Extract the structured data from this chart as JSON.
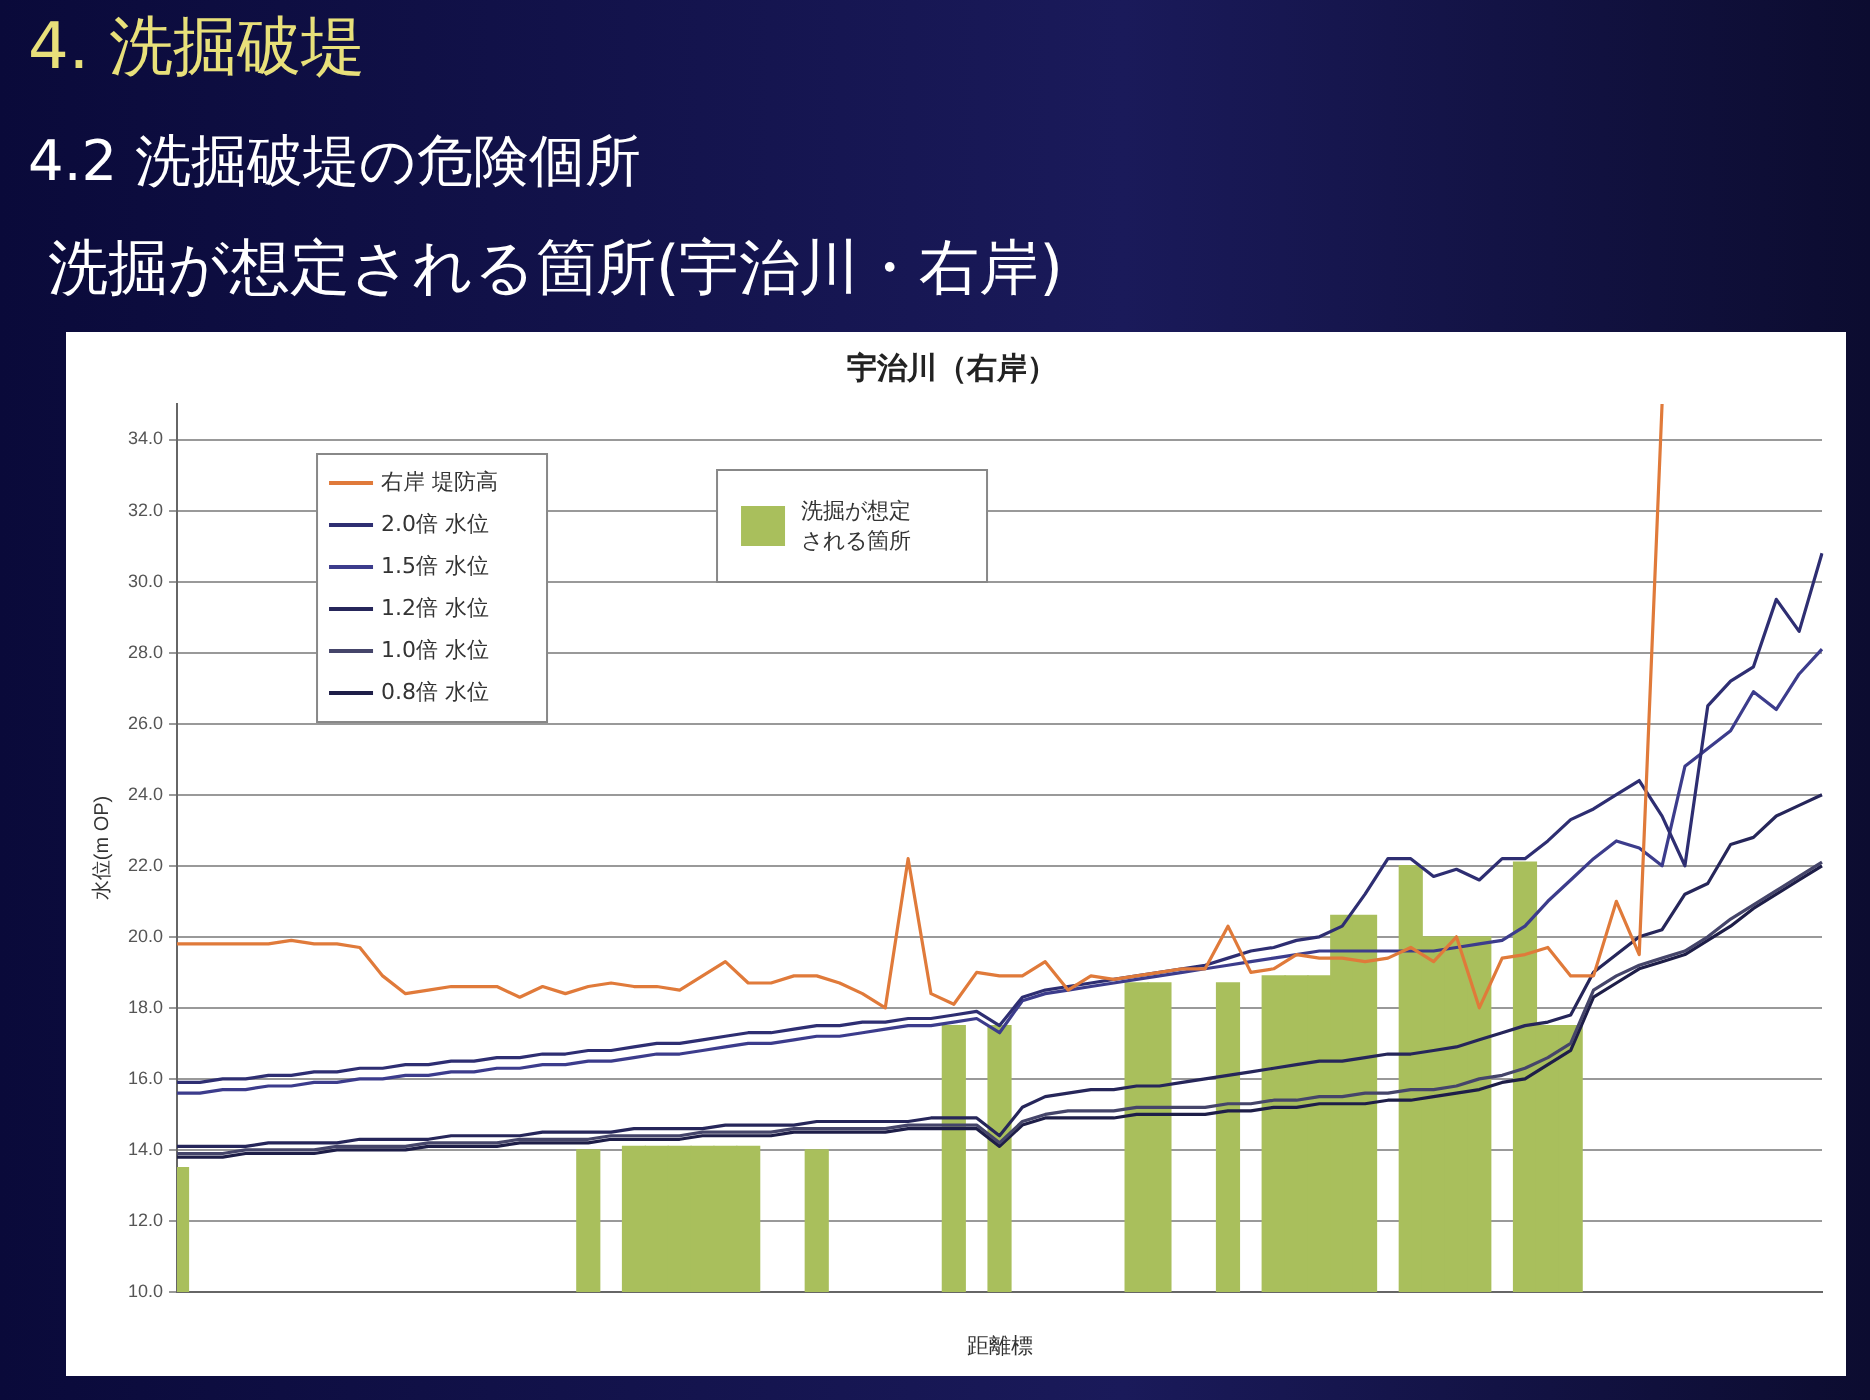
{
  "chart_data": {
    "type": "line",
    "title": "宇治川（右岸）",
    "xlabel": "距離標",
    "ylabel": "水位(m OP)",
    "annotations": [
      "4. 洗掘破堤",
      "4.2 洗掘破堤の危険個所",
      "洗掘が想定される箇所(宇治川・右岸)"
    ],
    "categories": [
      null,
      null,
      null,
      null,
      null,
      null,
      null,
      null,
      null,
      null,
      null,
      null,
      null,
      null,
      null,
      null,
      null,
      null,
      null,
      null,
      null,
      null,
      null,
      null,
      null,
      null,
      null,
      null,
      null,
      null,
      null,
      null,
      null,
      null,
      null,
      null,
      null,
      null,
      null,
      null,
      null,
      null,
      null,
      null,
      null,
      null,
      null,
      null,
      null,
      null,
      null,
      null,
      null,
      null,
      null,
      null,
      null,
      null,
      null,
      null,
      null,
      null,
      null,
      null,
      null,
      null,
      null,
      null,
      null,
      null,
      null,
      null,
      null
    ],
    "ylim": [
      10,
      35
    ],
    "yticks": [
      {
        "value": 10,
        "label": "10.0"
      },
      {
        "value": 12,
        "label": "12.0"
      },
      {
        "value": 14,
        "label": "14.0"
      },
      {
        "value": 16,
        "label": "16.0"
      },
      {
        "value": 18,
        "label": "18.0"
      },
      {
        "value": 20,
        "label": "20.0"
      },
      {
        "value": 22,
        "label": "22.0"
      },
      {
        "value": 24,
        "label": "24.0"
      },
      {
        "value": 26,
        "label": "26.0"
      },
      {
        "value": 28,
        "label": "28.0"
      },
      {
        "value": 30,
        "label": "30.0"
      },
      {
        "value": 32,
        "label": "32.0"
      },
      {
        "value": 34,
        "label": "34.0"
      }
    ],
    "grid": "y",
    "legend": "top left",
    "marker": "none",
    "line_style": "solid",
    "series": [
      {
        "type": "bar",
        "name": "洗掘が想定される箇所",
        "color": "#a9bf5c",
        "values": [
          13.5,
          null,
          null,
          null,
          null,
          null,
          null,
          null,
          null,
          null,
          null,
          null,
          null,
          null,
          null,
          null,
          null,
          null,
          14.0,
          null,
          14.1,
          14.1,
          14.1,
          14.1,
          14.1,
          14.1,
          null,
          null,
          14.0,
          null,
          null,
          null,
          null,
          null,
          17.5,
          null,
          17.5,
          null,
          null,
          null,
          null,
          null,
          18.7,
          18.7,
          null,
          null,
          18.7,
          null,
          18.9,
          18.9,
          18.9,
          20.6,
          20.6,
          null,
          22.0,
          20.0,
          20.0,
          20.0,
          null,
          22.1,
          17.5,
          17.5,
          null,
          null,
          null,
          null,
          null,
          null,
          null,
          null,
          null,
          null,
          null
        ]
      },
      {
        "name": "右岸 堤防高",
        "color": "#e07a3a",
        "values": [
          19.8,
          19.8,
          19.8,
          19.8,
          19.8,
          19.9,
          19.8,
          19.8,
          19.7,
          18.9,
          18.4,
          18.5,
          18.6,
          18.6,
          18.6,
          18.3,
          18.6,
          18.4,
          18.6,
          18.7,
          18.6,
          18.6,
          18.5,
          18.9,
          19.3,
          18.7,
          18.7,
          18.9,
          18.9,
          18.7,
          18.4,
          18.0,
          22.2,
          18.4,
          18.1,
          19.0,
          18.9,
          18.9,
          19.3,
          18.5,
          18.9,
          18.8,
          18.9,
          19.0,
          19.1,
          19.1,
          20.3,
          19.0,
          19.1,
          19.5,
          19.4,
          19.4,
          19.3,
          19.4,
          19.7,
          19.3,
          20.0,
          18.0,
          19.4,
          19.5,
          19.7,
          18.9,
          18.9,
          21.0,
          19.5,
          35,
          null,
          null,
          null,
          null,
          null,
          null,
          null
        ]
      },
      {
        "name": "2.0倍 水位",
        "color": "#2e2e72",
        "values": [
          15.9,
          15.9,
          16.0,
          16.0,
          16.1,
          16.1,
          16.2,
          16.2,
          16.3,
          16.3,
          16.4,
          16.4,
          16.5,
          16.5,
          16.6,
          16.6,
          16.7,
          16.7,
          16.8,
          16.8,
          16.9,
          17.0,
          17.0,
          17.1,
          17.2,
          17.3,
          17.3,
          17.4,
          17.5,
          17.5,
          17.6,
          17.6,
          17.7,
          17.7,
          17.8,
          17.9,
          17.5,
          18.3,
          18.5,
          18.6,
          18.7,
          18.8,
          18.9,
          19.0,
          19.1,
          19.2,
          19.4,
          19.6,
          19.7,
          19.9,
          20.0,
          20.3,
          21.2,
          22.2,
          22.2,
          21.7,
          21.9,
          21.6,
          22.2,
          22.2,
          22.7,
          23.3,
          23.6,
          24.0,
          24.4,
          23.4,
          22.0,
          26.5,
          27.2,
          27.6,
          29.5,
          28.6,
          30.8
        ]
      },
      {
        "name": "1.5倍 水位",
        "color": "#3c3c8c",
        "values": [
          15.6,
          15.6,
          15.7,
          15.7,
          15.8,
          15.8,
          15.9,
          15.9,
          16.0,
          16.0,
          16.1,
          16.1,
          16.2,
          16.2,
          16.3,
          16.3,
          16.4,
          16.4,
          16.5,
          16.5,
          16.6,
          16.7,
          16.7,
          16.8,
          16.9,
          17.0,
          17.0,
          17.1,
          17.2,
          17.2,
          17.3,
          17.4,
          17.5,
          17.5,
          17.6,
          17.7,
          17.3,
          18.2,
          18.4,
          18.5,
          18.6,
          18.7,
          18.8,
          18.9,
          19.0,
          19.1,
          19.2,
          19.3,
          19.4,
          19.5,
          19.6,
          19.6,
          19.6,
          19.6,
          19.6,
          19.6,
          19.7,
          19.8,
          19.9,
          20.3,
          21.0,
          21.6,
          22.2,
          22.7,
          22.5,
          22.0,
          24.8,
          25.3,
          25.8,
          26.9,
          26.4,
          27.4,
          28.1
        ]
      },
      {
        "name": "1.2倍 水位",
        "color": "#26265a",
        "values": [
          14.1,
          14.1,
          14.1,
          14.1,
          14.2,
          14.2,
          14.2,
          14.2,
          14.3,
          14.3,
          14.3,
          14.3,
          14.4,
          14.4,
          14.4,
          14.4,
          14.5,
          14.5,
          14.5,
          14.5,
          14.6,
          14.6,
          14.6,
          14.6,
          14.7,
          14.7,
          14.7,
          14.7,
          14.8,
          14.8,
          14.8,
          14.8,
          14.8,
          14.9,
          14.9,
          14.9,
          14.4,
          15.2,
          15.5,
          15.6,
          15.7,
          15.7,
          15.8,
          15.8,
          15.9,
          16.0,
          16.1,
          16.2,
          16.3,
          16.4,
          16.5,
          16.5,
          16.6,
          16.7,
          16.7,
          16.8,
          16.9,
          17.1,
          17.3,
          17.5,
          17.6,
          17.8,
          19.0,
          19.5,
          20.0,
          20.2,
          21.2,
          21.5,
          22.6,
          22.8,
          23.4,
          23.7,
          24.0
        ]
      },
      {
        "name": "1.0倍 水位",
        "color": "#45456a",
        "values": [
          13.9,
          13.9,
          13.9,
          14.0,
          14.0,
          14.0,
          14.0,
          14.1,
          14.1,
          14.1,
          14.1,
          14.2,
          14.2,
          14.2,
          14.2,
          14.3,
          14.3,
          14.3,
          14.3,
          14.4,
          14.4,
          14.4,
          14.4,
          14.5,
          14.5,
          14.5,
          14.5,
          14.6,
          14.6,
          14.6,
          14.6,
          14.6,
          14.7,
          14.7,
          14.7,
          14.7,
          14.2,
          14.8,
          15.0,
          15.1,
          15.1,
          15.1,
          15.2,
          15.2,
          15.2,
          15.2,
          15.3,
          15.3,
          15.4,
          15.4,
          15.5,
          15.5,
          15.6,
          15.6,
          15.7,
          15.7,
          15.8,
          16.0,
          16.1,
          16.3,
          16.6,
          17.0,
          18.5,
          18.9,
          19.2,
          19.4,
          19.6,
          20.0,
          20.5,
          20.9,
          21.3,
          21.7,
          22.1
        ]
      },
      {
        "name": "0.8倍 水位",
        "color": "#1e1e48",
        "values": [
          13.8,
          13.8,
          13.8,
          13.9,
          13.9,
          13.9,
          13.9,
          14.0,
          14.0,
          14.0,
          14.0,
          14.1,
          14.1,
          14.1,
          14.1,
          14.2,
          14.2,
          14.2,
          14.2,
          14.3,
          14.3,
          14.3,
          14.3,
          14.4,
          14.4,
          14.4,
          14.4,
          14.5,
          14.5,
          14.5,
          14.5,
          14.5,
          14.6,
          14.6,
          14.6,
          14.6,
          14.1,
          14.7,
          14.9,
          14.9,
          14.9,
          14.9,
          15.0,
          15.0,
          15.0,
          15.0,
          15.1,
          15.1,
          15.2,
          15.2,
          15.3,
          15.3,
          15.3,
          15.4,
          15.4,
          15.5,
          15.6,
          15.7,
          15.9,
          16.0,
          16.4,
          16.8,
          18.3,
          18.7,
          19.1,
          19.3,
          19.5,
          19.9,
          20.3,
          20.8,
          21.2,
          21.6,
          22.0
        ]
      }
    ]
  }
}
